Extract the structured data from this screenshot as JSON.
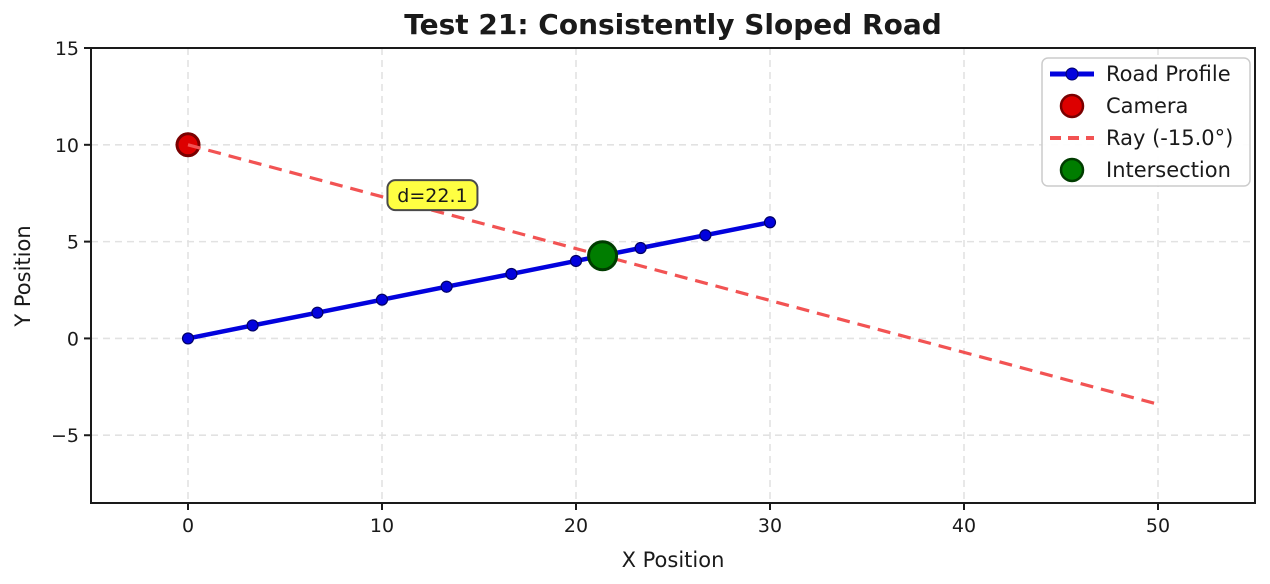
{
  "chart_data": {
    "type": "line",
    "title": "Test 21: Consistently Sloped Road",
    "xlabel": "X Position",
    "ylabel": "Y Position",
    "xlim": [
      -5,
      55
    ],
    "ylim": [
      -8.5,
      15
    ],
    "xticks": {
      "values": [
        0,
        10,
        20,
        30,
        40,
        50
      ],
      "labels": [
        "0",
        "10",
        "20",
        "30",
        "40",
        "50"
      ]
    },
    "yticks": {
      "values": [
        -5,
        0,
        5,
        10,
        15
      ],
      "labels": [
        "−5",
        "0",
        "5",
        "10",
        "15"
      ]
    },
    "grid": true,
    "legend_position": "upper right",
    "series": [
      {
        "name": "Road Profile",
        "type": "line-marker",
        "color": "#0202dd",
        "marker_edge": "#000066",
        "x": [
          0,
          3.33,
          6.67,
          10,
          13.33,
          16.67,
          20,
          23.33,
          26.67,
          30
        ],
        "y": [
          0,
          0.67,
          1.33,
          2,
          2.67,
          3.33,
          4,
          4.67,
          5.33,
          6
        ]
      },
      {
        "name": "Camera",
        "type": "point",
        "color": "#dd0000",
        "edge": "#7a0000",
        "x": [
          0
        ],
        "y": [
          10
        ]
      },
      {
        "name": "Ray (-15.0°)",
        "type": "dashed-line",
        "color": "#f25353",
        "angle_deg": -15.0,
        "x": [
          0,
          50
        ],
        "y": [
          10,
          -3.4
        ]
      },
      {
        "name": "Intersection",
        "type": "point",
        "color": "#007d00",
        "edge": "#003c00",
        "x": [
          21.37
        ],
        "y": [
          4.27
        ]
      }
    ],
    "annotation": {
      "text": "d=22.1",
      "x": 12.6,
      "y": 7.4,
      "bg": "#ffff42",
      "border": "#4a4a4a"
    },
    "legend": [
      {
        "label": "Road Profile",
        "swatch": "line-marker",
        "color": "#0202dd",
        "edge": "#000066"
      },
      {
        "label": "Camera",
        "swatch": "circle",
        "color": "#dd0000",
        "edge": "#7a0000"
      },
      {
        "label": "Ray (-15.0°)",
        "swatch": "dashed",
        "color": "#f25353",
        "edge": "#f25353"
      },
      {
        "label": "Intersection",
        "swatch": "circle",
        "color": "#007d00",
        "edge": "#003c00"
      }
    ],
    "colors": {
      "grid": "#e2e2e2",
      "spine": "#1a1a1a",
      "background": "#ffffff",
      "legend_border": "#cccccc"
    }
  }
}
